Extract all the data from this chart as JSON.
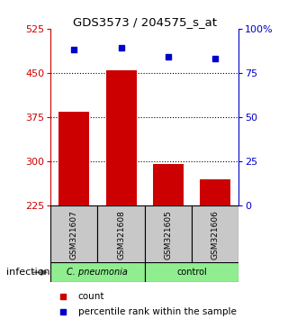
{
  "title": "GDS3573 / 204575_s_at",
  "samples": [
    "GSM321607",
    "GSM321608",
    "GSM321605",
    "GSM321606"
  ],
  "counts": [
    385,
    455,
    295,
    270
  ],
  "percentiles": [
    88,
    89,
    84,
    83
  ],
  "ylim_left": [
    225,
    525
  ],
  "yticks_left": [
    225,
    300,
    375,
    450,
    525
  ],
  "ylim_right": [
    0,
    100
  ],
  "yticks_right": [
    0,
    25,
    50,
    75,
    100
  ],
  "bar_color": "#cc0000",
  "dot_color": "#0000cc",
  "group_colors": [
    "#90ee90",
    "#90ee90"
  ],
  "group_labels": [
    "C. pneumonia",
    "control"
  ],
  "group_label": "infection",
  "label_box_color": "#c8c8c8",
  "left_axis_color": "#cc0000",
  "right_axis_color": "#0000cc",
  "bar_width": 0.65
}
